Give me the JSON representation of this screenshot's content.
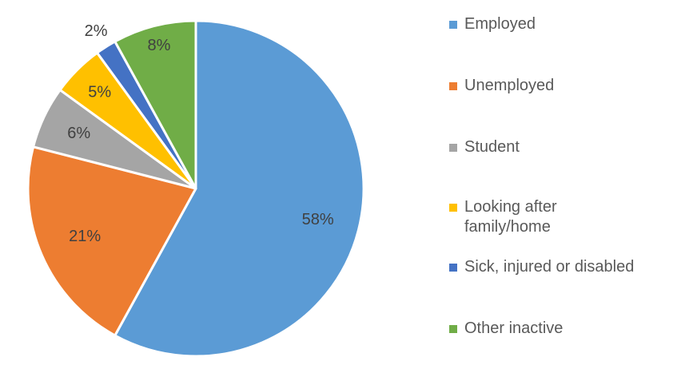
{
  "chart_data": {
    "type": "pie",
    "categories": [
      "Employed",
      "Unemployed",
      "Student",
      "Looking after\nfamily/home",
      "Sick, injured or disabled",
      "Other inactive"
    ],
    "values": [
      58,
      21,
      6,
      5,
      2,
      8
    ],
    "data_labels": [
      "58%",
      "21%",
      "6%",
      "5%",
      "2%",
      "8%"
    ],
    "colors": [
      "#5B9BD5",
      "#ED7D31",
      "#A5A5A5",
      "#FFC000",
      "#4472C4",
      "#70AD47"
    ],
    "start_angle": "12 o'clock",
    "direction": "clockwise",
    "legend_placement": "right",
    "title": ""
  }
}
